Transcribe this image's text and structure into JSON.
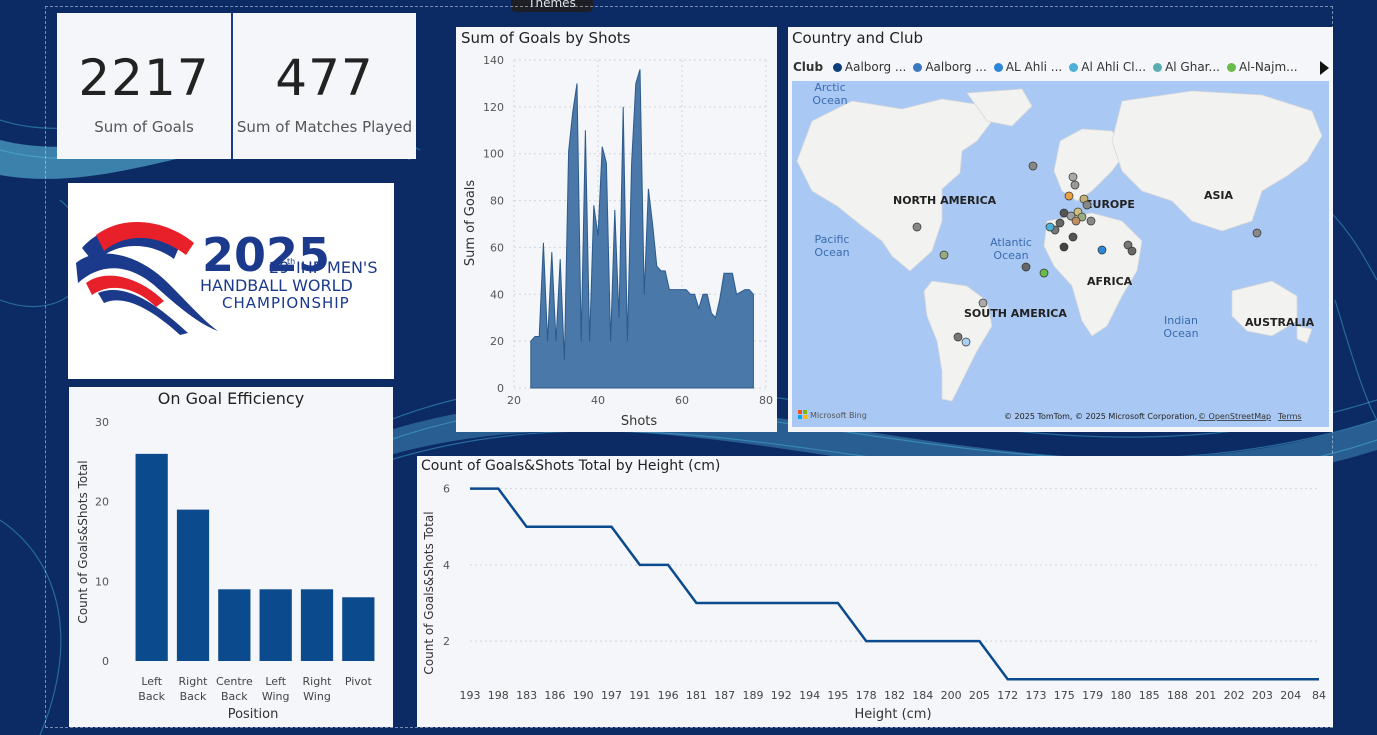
{
  "theme_tab": "Themes",
  "kpis": {
    "goals": {
      "value": "2217",
      "label": "Sum of Goals"
    },
    "matches": {
      "value": "477",
      "label": "Sum of Matches Played"
    }
  },
  "logo": {
    "year": "2025",
    "edition": "29",
    "edition_suffix": "th",
    "line1": "IHF MEN'S",
    "line2": "HANDBALL WORLD",
    "line3": "CHAMPIONSHIP"
  },
  "colors": {
    "accent": "#0b4a8c",
    "area": "#4a78a8",
    "brand_red": "#e8202a",
    "brand_blue": "#1b3a8c"
  },
  "shots_chart": {
    "chart_data": {
      "type": "area",
      "title": "Sum of Goals by Shots",
      "xlabel": "Shots",
      "ylabel": "Sum of Goals",
      "xlim": [
        20,
        80
      ],
      "ylim": [
        0,
        140
      ],
      "xticks": [
        20,
        40,
        60,
        80
      ],
      "yticks": [
        0,
        20,
        40,
        60,
        80,
        100,
        120,
        140
      ],
      "x": [
        24,
        25,
        26,
        27,
        28,
        29,
        30,
        31,
        32,
        33,
        34,
        35,
        36,
        37,
        38,
        39,
        40,
        41,
        42,
        43,
        44,
        45,
        46,
        47,
        48,
        49,
        50,
        51,
        52,
        53,
        54,
        55,
        56,
        57,
        58,
        59,
        60,
        61,
        62,
        63,
        64,
        65,
        66,
        67,
        68,
        69,
        70,
        71,
        72,
        73,
        74,
        75,
        76,
        77
      ],
      "values": [
        20,
        22,
        22,
        62,
        20,
        58,
        20,
        55,
        12,
        101,
        118,
        130,
        20,
        110,
        20,
        78,
        65,
        103,
        96,
        20,
        76,
        30,
        120,
        20,
        96,
        130,
        136,
        40,
        85,
        70,
        52,
        50,
        50,
        42,
        42,
        42,
        42,
        42,
        40,
        40,
        34,
        40,
        40,
        32,
        30,
        38,
        49,
        49,
        49,
        40,
        41,
        42,
        42,
        40
      ]
    }
  },
  "map": {
    "title": "Country and Club",
    "legend_label": "Club",
    "legend_items": [
      {
        "name": "Aalborg ...",
        "color": "#0c3e78"
      },
      {
        "name": "Aalborg ...",
        "color": "#3a78c4"
      },
      {
        "name": "AL Ahli ...",
        "color": "#2e86d8"
      },
      {
        "name": "Al Ahli Cl...",
        "color": "#4cb0d8"
      },
      {
        "name": "Al Ghar...",
        "color": "#5aaeb0"
      },
      {
        "name": "Al-Najm...",
        "color": "#6bbb4a"
      }
    ],
    "labels": {
      "arctic": "Arctic",
      "arctic2": "Ocean",
      "na": "NORTH AMERICA",
      "europe": "EUROPE",
      "asia": "ASIA",
      "pacific": "Pacific",
      "pacific2": "Ocean",
      "atlantic": "Atlantic",
      "atlantic2": "Ocean",
      "africa": "AFRICA",
      "sa": "SOUTH AMERICA",
      "indian": "Indian",
      "indian2": "Ocean",
      "australia": "AUSTRALIA"
    },
    "bing": "Microsoft Bing",
    "copyright": "© 2025 TomTom, © 2025 Microsoft Corporation, ",
    "osm": "© OpenStreetMap",
    "terms": "Terms"
  },
  "efficiency": {
    "chart_data": {
      "type": "bar",
      "title": "On Goal Efficiency",
      "xlabel": "Position",
      "ylabel": "Count of Goals&Shots Total",
      "ylim": [
        0,
        30
      ],
      "yticks": [
        0,
        10,
        20,
        30
      ],
      "categories": [
        [
          "Left",
          "Back"
        ],
        [
          "Right",
          "Back"
        ],
        [
          "Centre",
          "Back"
        ],
        [
          "Left",
          "Wing"
        ],
        [
          "Right",
          "Wing"
        ],
        [
          "Pivot",
          ""
        ]
      ],
      "values": [
        26,
        19,
        9,
        9,
        9,
        8
      ]
    }
  },
  "height_chart": {
    "chart_data": {
      "type": "line",
      "title": "Count of Goals&Shots Total by Height (cm)",
      "xlabel": "Height (cm)",
      "ylabel": "Count of Goals&Shots Total",
      "ylim": [
        0.9,
        6.2
      ],
      "yticks": [
        2,
        4,
        6
      ],
      "categories": [
        "193",
        "198",
        "183",
        "186",
        "190",
        "197",
        "191",
        "196",
        "181",
        "187",
        "189",
        "192",
        "194",
        "195",
        "178",
        "182",
        "184",
        "200",
        "205",
        "172",
        "173",
        "175",
        "179",
        "180",
        "185",
        "188",
        "201",
        "202",
        "203",
        "204",
        "84"
      ],
      "values": [
        6,
        6,
        5,
        5,
        5,
        5,
        4,
        4,
        3,
        3,
        3,
        3,
        3,
        3,
        2,
        2,
        2,
        2,
        2,
        1,
        1,
        1,
        1,
        1,
        1,
        1,
        1,
        1,
        1,
        1,
        1
      ]
    }
  }
}
